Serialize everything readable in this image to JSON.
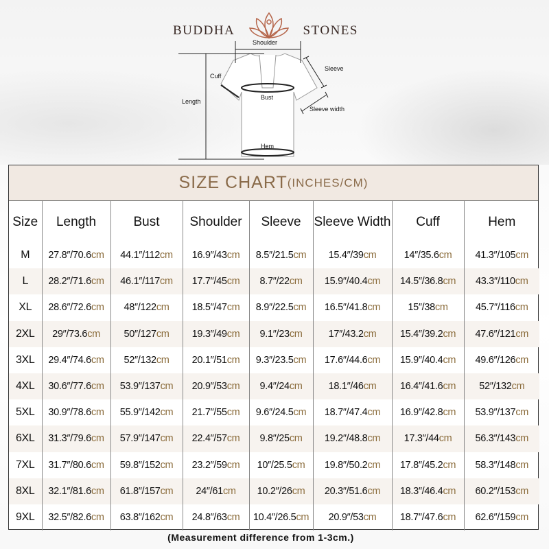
{
  "brand": {
    "left": "BUDDHA",
    "right": "STONES",
    "accent": "#b5654a"
  },
  "diagram": {
    "labels": {
      "shoulder": "Shoulder",
      "sleeve": "Sleeve",
      "cuff": "Cuff",
      "length": "Length",
      "bust": "Bust",
      "sleeve_width": "Sleeve width",
      "hem": "Hem"
    }
  },
  "table": {
    "title": "SIZE CHART",
    "title_suffix": "(INCHES/CM)",
    "unit": "cm",
    "headers": [
      "Size",
      "Length",
      "Bust",
      "Shoulder",
      "Sleeve",
      "Sleeve Width",
      "Cuff",
      "Hem"
    ],
    "rows": [
      [
        "M",
        "27.8″/70.6",
        "44.1″/112",
        "16.9″/43",
        "8.5″/21.5",
        "15.4″/39",
        "14″/35.6",
        "41.3″/105"
      ],
      [
        "L",
        "28.2″/71.6",
        "46.1″/117",
        "17.7″/45",
        "8.7″/22",
        "15.9″/40.4",
        "14.5″/36.8",
        "43.3″/110"
      ],
      [
        "XL",
        "28.6″/72.6",
        "48″/122",
        "18.5″/47",
        "8.9″/22.5",
        "16.5″/41.8",
        "15″/38",
        "45.7″/116"
      ],
      [
        "2XL",
        "29″/73.6",
        "50″/127",
        "19.3″/49",
        "9.1″/23",
        "17″/43.2",
        "15.4″/39.2",
        "47.6″/121"
      ],
      [
        "3XL",
        "29.4″/74.6",
        "52″/132",
        "20.1″/51",
        "9.3″/23.5",
        "17.6″/44.6",
        "15.9″/40.4",
        "49.6″/126"
      ],
      [
        "4XL",
        "30.6″/77.6",
        "53.9″/137",
        "20.9″/53",
        "9.4″/24",
        "18.1″/46",
        "16.4″/41.6",
        "52″/132"
      ],
      [
        "5XL",
        "30.9″/78.6",
        "55.9″/142",
        "21.7″/55",
        "9.6″/24.5",
        "18.7″/47.4",
        "16.9″/42.8",
        "53.9″/137"
      ],
      [
        "6XL",
        "31.3″/79.6",
        "57.9″/147",
        "22.4″/57",
        "9.8″/25",
        "19.2″/48.8",
        "17.3″/44",
        "56.3″/143"
      ],
      [
        "7XL",
        "31.7″/80.6",
        "59.8″/152",
        "23.2″/59",
        "10″/25.5",
        "19.8″/50.2",
        "17.8″/45.2",
        "58.3″/148"
      ],
      [
        "8XL",
        "32.1″/81.6",
        "61.8″/157",
        "24″/61",
        "10.2″/26",
        "20.3″/51.6",
        "18.3″/46.4",
        "60.2″/153"
      ],
      [
        "9XL",
        "32.5″/82.6",
        "63.8″/162",
        "24.8″/63",
        "10.4″/26.5",
        "20.9″/53",
        "18.7″/47.6",
        "62.6″/159"
      ]
    ]
  },
  "note": "(Measurement difference from 1-3cm.)",
  "colors": {
    "title_bg": "#f1e9e2",
    "title_text": "#8a6b4a",
    "unit_text": "#8a6b3a"
  }
}
